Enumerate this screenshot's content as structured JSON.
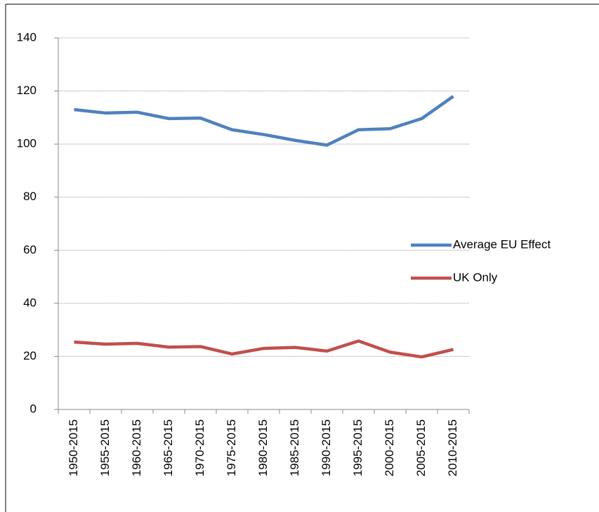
{
  "chart_data": {
    "type": "line",
    "categories": [
      "1950-2015",
      "1955-2015",
      "1960-2015",
      "1965-2015",
      "1970-2015",
      "1975-2015",
      "1980-2015",
      "1985-2015",
      "1990-2015",
      "1995-2015",
      "2000-2015",
      "2005-2015",
      "2010-2015"
    ],
    "series": [
      {
        "name": "Average EU Effect",
        "color": "#4f81bd",
        "values": [
          113,
          111.7,
          112,
          109.6,
          109.8,
          105.4,
          103.6,
          101.4,
          99.6,
          105.4,
          105.8,
          109.6,
          118
        ]
      },
      {
        "name": "UK Only",
        "color": "#c0504d",
        "values": [
          25.4,
          24.6,
          24.9,
          23.5,
          23.7,
          20.9,
          23,
          23.4,
          22,
          25.8,
          21.6,
          19.8,
          22.6
        ]
      }
    ],
    "ylim": [
      0,
      140
    ],
    "yticks": [
      0,
      20,
      40,
      60,
      80,
      100,
      120,
      140
    ],
    "grid": true,
    "legend": "right"
  }
}
